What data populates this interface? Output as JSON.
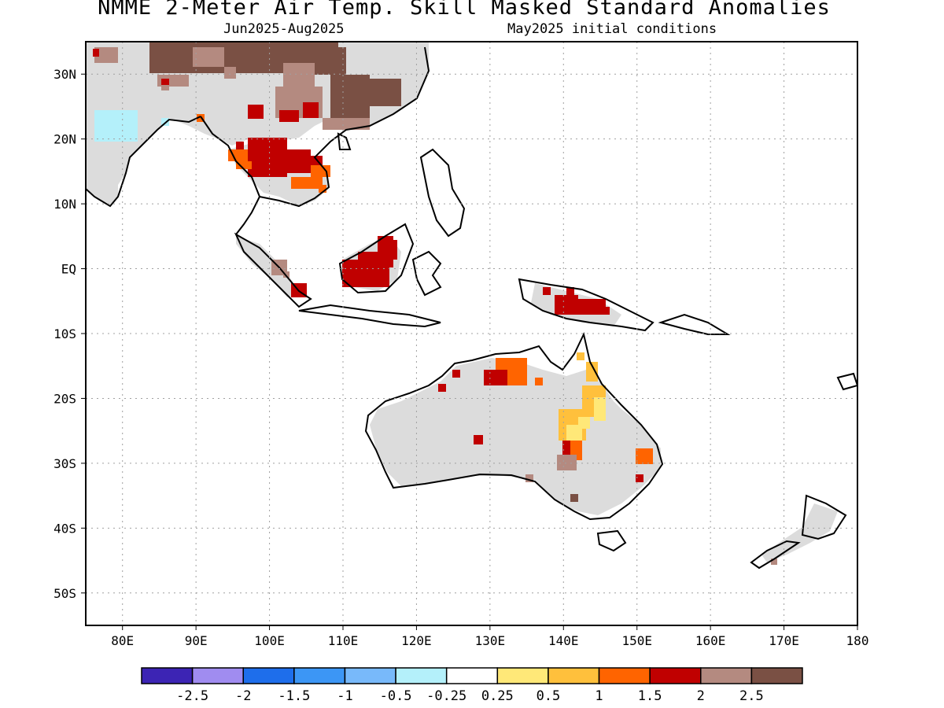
{
  "header": {
    "title": "NMME 2-Meter Air Temp. Skill Masked Standard Anomalies",
    "period": "Jun2025-Aug2025",
    "initial_conditions": "May2025 initial conditions"
  },
  "map": {
    "lon_range": [
      75,
      180
    ],
    "lat_range": [
      -55,
      35
    ],
    "lat_ticks": [
      {
        "lat": 30,
        "label": "30N"
      },
      {
        "lat": 20,
        "label": "20N"
      },
      {
        "lat": 10,
        "label": "10N"
      },
      {
        "lat": 0,
        "label": "EQ"
      },
      {
        "lat": -10,
        "label": "10S"
      },
      {
        "lat": -20,
        "label": "20S"
      },
      {
        "lat": -30,
        "label": "30S"
      },
      {
        "lat": -40,
        "label": "40S"
      },
      {
        "lat": -50,
        "label": "50S"
      }
    ],
    "lon_ticks": [
      {
        "lon": 80,
        "label": "80E"
      },
      {
        "lon": 90,
        "label": "90E"
      },
      {
        "lon": 100,
        "label": "100E"
      },
      {
        "lon": 110,
        "label": "110E"
      },
      {
        "lon": 120,
        "label": "120E"
      },
      {
        "lon": 130,
        "label": "130E"
      },
      {
        "lon": 140,
        "label": "140E"
      },
      {
        "lon": 150,
        "label": "150E"
      },
      {
        "lon": 160,
        "label": "160E"
      },
      {
        "lon": 170,
        "label": "170E"
      },
      {
        "lon": 180,
        "label": "180"
      }
    ],
    "grid": true
  },
  "legend": {
    "colors": [
      "#3c24b4",
      "#a08cf0",
      "#1e6eeb",
      "#3c96f5",
      "#78b9fa",
      "#b4f0fa",
      "#ffffff",
      "#ffe878",
      "#ffc03c",
      "#ff6400",
      "#c00000",
      "#b48a80",
      "#7a5044"
    ],
    "labels": [
      "-2.5",
      "-2",
      "-1.5",
      "-1",
      "-0.5",
      "-0.25",
      "0.25",
      "0.5",
      "1",
      "1.5",
      "2",
      "2.5"
    ]
  },
  "colors": {
    "masked_land": "#dcdcdc",
    "coastline": "#000000"
  }
}
